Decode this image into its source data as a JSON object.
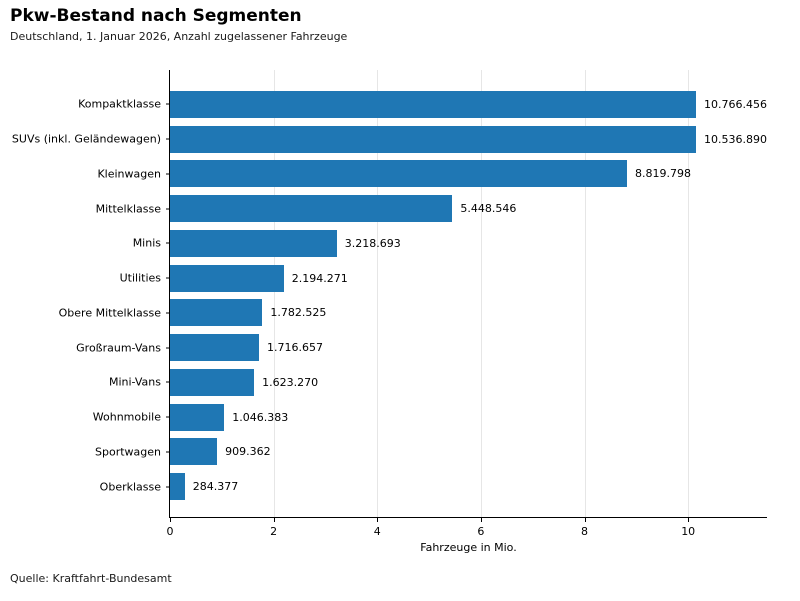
{
  "header": {
    "title": "Pkw-Bestand nach Segmenten",
    "subtitle": "Deutschland, 1. Januar 2026, Anzahl zugelassener Fahrzeuge"
  },
  "footer": {
    "source": "Quelle: Kraftfahrt-Bundesamt"
  },
  "chart_data": {
    "type": "bar",
    "orientation": "horizontal",
    "title": "Pkw-Bestand nach Segmenten",
    "subtitle": "Deutschland, 1. Januar 2026, Anzahl zugelassener Fahrzeuge",
    "xlabel": "Fahrzeuge in Mio.",
    "categories": [
      "Kompaktklasse",
      "SUVs (inkl. Geländewagen)",
      "Kleinwagen",
      "Mittelklasse",
      "Minis",
      "Utilities",
      "Obere Mittelklasse",
      "Großraum-Vans",
      "Mini-Vans",
      "Wohnmobile",
      "Sportwagen",
      "Oberklasse"
    ],
    "values": [
      10766456,
      10536890,
      8819798,
      5448546,
      3218693,
      2194271,
      1782525,
      1716657,
      1623270,
      1046383,
      909362,
      284377
    ],
    "value_labels": [
      "10.766.456",
      "10.536.890",
      "8.819.798",
      "5.448.546",
      "3.218.693",
      "2.194.271",
      "1.782.525",
      "1.716.657",
      "1.623.270",
      "1.046.383",
      "909.362",
      "284.377"
    ],
    "xticks": [
      0,
      2,
      4,
      6,
      8,
      10
    ],
    "xlim": [
      0,
      11.54
    ],
    "grid": "vertical-on",
    "legend": "none",
    "colors": {
      "bar": "#1f77b4",
      "gridline": "#e6e6e6",
      "spine": "#000000",
      "text": "#000000"
    }
  }
}
